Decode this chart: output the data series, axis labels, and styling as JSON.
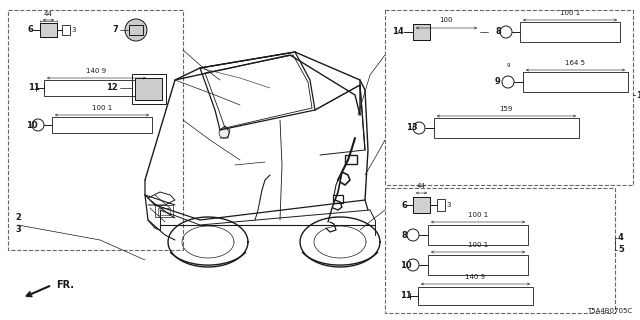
{
  "diagram_code": "T5A4B0705C",
  "bg_color": "#ffffff",
  "line_color": "#1a1a1a",
  "fig_width": 6.4,
  "fig_height": 3.2,
  "dpi": 100
}
